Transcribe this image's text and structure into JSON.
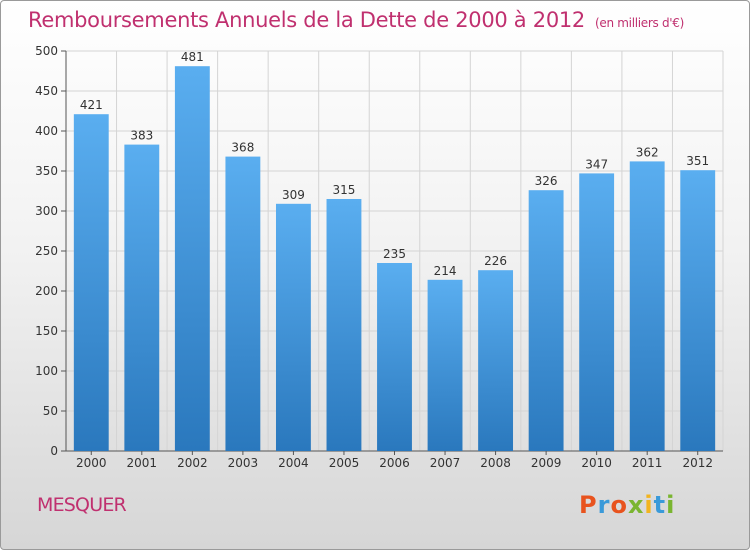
{
  "header": {
    "title": "Remboursements Annuels de la Dette de 2000 à 2012",
    "subtitle": "(en milliers d'€)"
  },
  "footer": {
    "commune": "MESQUER",
    "brand": "Proxiti",
    "brand_colors": [
      "#e8531e",
      "#3a9ad9",
      "#e8531e",
      "#7ab530",
      "#f2b41f",
      "#3a9ad9",
      "#7ab530"
    ]
  },
  "chart_data": {
    "type": "bar",
    "categories": [
      "2000",
      "2001",
      "2002",
      "2003",
      "2004",
      "2005",
      "2006",
      "2007",
      "2008",
      "2009",
      "2010",
      "2011",
      "2012"
    ],
    "values": [
      421,
      383,
      481,
      368,
      309,
      315,
      235,
      214,
      226,
      326,
      347,
      362,
      351
    ],
    "ylim": [
      0,
      500
    ],
    "yticks": [
      0,
      50,
      100,
      150,
      200,
      250,
      300,
      350,
      400,
      450,
      500
    ],
    "grid": true,
    "bar_color_top": "#5aaef0",
    "bar_color_bottom": "#2a78bd",
    "title": "Remboursements Annuels de la Dette de 2000 à 2012"
  }
}
